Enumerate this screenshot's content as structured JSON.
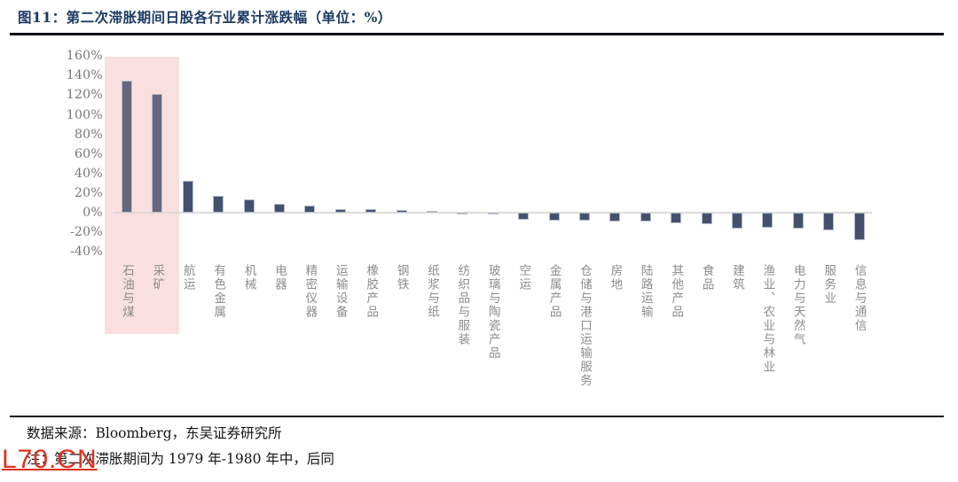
{
  "figure": {
    "label": "图11：",
    "title": "第二次滞胀期间日股各行业累计涨跌幅（单位：%）"
  },
  "chart_data": {
    "type": "bar",
    "title": "第二次滞胀期间日股各行业累计涨跌幅（单位：%）",
    "xlabel": "",
    "ylabel": "",
    "unit": "%",
    "ylim": [
      -40,
      160
    ],
    "ytick_step": 20,
    "ytick_labels": [
      "160%",
      "140%",
      "120%",
      "100%",
      "80%",
      "60%",
      "40%",
      "20%",
      "0%",
      "-20%",
      "-40%"
    ],
    "grid": false,
    "legend": null,
    "categories": [
      "石油与煤",
      "采矿",
      "航运",
      "有色金属",
      "机械",
      "电器",
      "精密仪器",
      "运输设备",
      "橡胶产品",
      "钢铁",
      "纸浆与纸",
      "纺织品与服装",
      "玻璃与陶瓷产品",
      "空运",
      "金属产品",
      "仓储与港口运输服务",
      "房地",
      "陆路运输",
      "其他产品",
      "食品",
      "建筑",
      "渔业、农业与林业",
      "电力与天然气",
      "服务业",
      "信息与通信"
    ],
    "values": [
      135,
      121,
      33,
      17,
      14,
      9,
      7,
      4,
      4,
      3,
      2,
      -1,
      -2,
      -7,
      -8,
      -8,
      -9,
      -9,
      -11,
      -12,
      -16,
      -15,
      -16,
      -18,
      -28
    ],
    "highlighted_categories": [
      "石油与煤",
      "采矿"
    ],
    "colors": {
      "bar": "#44516e",
      "bar_border": "#b6bccb",
      "highlight": "#fae4e4",
      "axis_text": "#767676",
      "category_text": "#8c8c8c",
      "zero_line": "#dcdcdc",
      "title_text": "#1c3a63"
    }
  },
  "footer": {
    "source": "数据来源：Bloomberg，东吴证券研究所",
    "note": "注：第二次滞胀期间为 1979 年-1980 年中，后同"
  },
  "watermark": "L70.CN"
}
